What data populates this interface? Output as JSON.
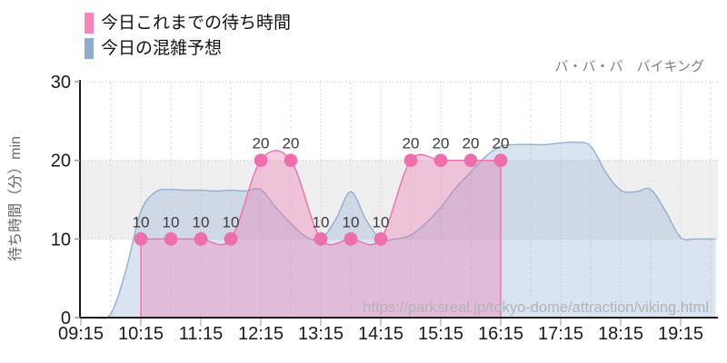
{
  "legend": {
    "items": [
      {
        "label": "今日これまでの待ち時間",
        "color": "#F985BC"
      },
      {
        "label": "今日の混雑予想",
        "color": "#8BADD0"
      }
    ]
  },
  "chart_data": {
    "type": "line",
    "title": "バ・バ・バ　バイキング",
    "ylabel": "待ち時間（分）min",
    "xlabel": "",
    "ylim": [
      0,
      30
    ],
    "y_ticks": [
      0,
      10,
      20,
      30
    ],
    "x_ticks": [
      "09:15",
      "10:15",
      "11:15",
      "12:15",
      "13:15",
      "14:15",
      "15:15",
      "16:15",
      "17:15",
      "18:15",
      "19:15"
    ],
    "grid": {
      "vertical": "dashed every 30 min",
      "horizontal": "dotted at 10, 20, 30"
    },
    "band": {
      "from": 10,
      "to": 20,
      "color": "#EFEFEF"
    },
    "legend_position": "top-left",
    "watermark": "https://parksreal.jp/tokyo-dome/attraction/viking.html",
    "series": [
      {
        "name": "今日の混雑予想",
        "type": "area",
        "line_color": "#8FB0D2",
        "fill_color": "rgba(143,176,210,0.34)",
        "markers": false,
        "point_labels": false,
        "points": [
          [
            "09:15",
            0
          ],
          [
            "09:30",
            0
          ],
          [
            "09:45",
            0.5
          ],
          [
            "10:00",
            6
          ],
          [
            "10:15",
            13.5
          ],
          [
            "10:30",
            16
          ],
          [
            "10:45",
            16.3
          ],
          [
            "11:00",
            16.2
          ],
          [
            "11:15",
            16.2
          ],
          [
            "11:30",
            16.1
          ],
          [
            "11:45",
            16.2
          ],
          [
            "12:00",
            16.1
          ],
          [
            "12:15",
            16.3
          ],
          [
            "12:30",
            14
          ],
          [
            "12:45",
            12
          ],
          [
            "13:00",
            10.3
          ],
          [
            "13:15",
            10
          ],
          [
            "13:30",
            12.5
          ],
          [
            "13:45",
            16
          ],
          [
            "14:00",
            12.5
          ],
          [
            "14:15",
            10
          ],
          [
            "14:30",
            10
          ],
          [
            "14:45",
            10.5
          ],
          [
            "15:00",
            12
          ],
          [
            "15:15",
            14
          ],
          [
            "15:30",
            16.5
          ],
          [
            "15:45",
            18.5
          ],
          [
            "16:00",
            20.5
          ],
          [
            "16:15",
            21.8
          ],
          [
            "16:30",
            22
          ],
          [
            "16:45",
            22
          ],
          [
            "17:00",
            22
          ],
          [
            "17:15",
            22.2
          ],
          [
            "17:30",
            22.3
          ],
          [
            "17:45",
            21.8
          ],
          [
            "18:00",
            18.5
          ],
          [
            "18:15",
            16.2
          ],
          [
            "18:30",
            16
          ],
          [
            "18:45",
            16.3
          ],
          [
            "19:00",
            13.5
          ],
          [
            "19:15",
            10.2
          ],
          [
            "19:30",
            10
          ],
          [
            "19:50",
            10
          ]
        ]
      },
      {
        "name": "今日これまでの待ち時間",
        "type": "area",
        "line_color": "#EE6FAD",
        "fill_color": "rgba(238,111,173,0.34)",
        "marker_color": "#EE6FAD",
        "markers": true,
        "point_labels": true,
        "points": [
          [
            "10:15",
            10
          ],
          [
            "10:45",
            10
          ],
          [
            "11:15",
            10
          ],
          [
            "11:45",
            10
          ],
          [
            "12:15",
            20
          ],
          [
            "12:45",
            20
          ],
          [
            "13:15",
            10
          ],
          [
            "13:45",
            10
          ],
          [
            "14:15",
            10
          ],
          [
            "14:45",
            20
          ],
          [
            "15:15",
            20
          ],
          [
            "15:45",
            20
          ],
          [
            "16:15",
            20
          ]
        ]
      }
    ]
  }
}
